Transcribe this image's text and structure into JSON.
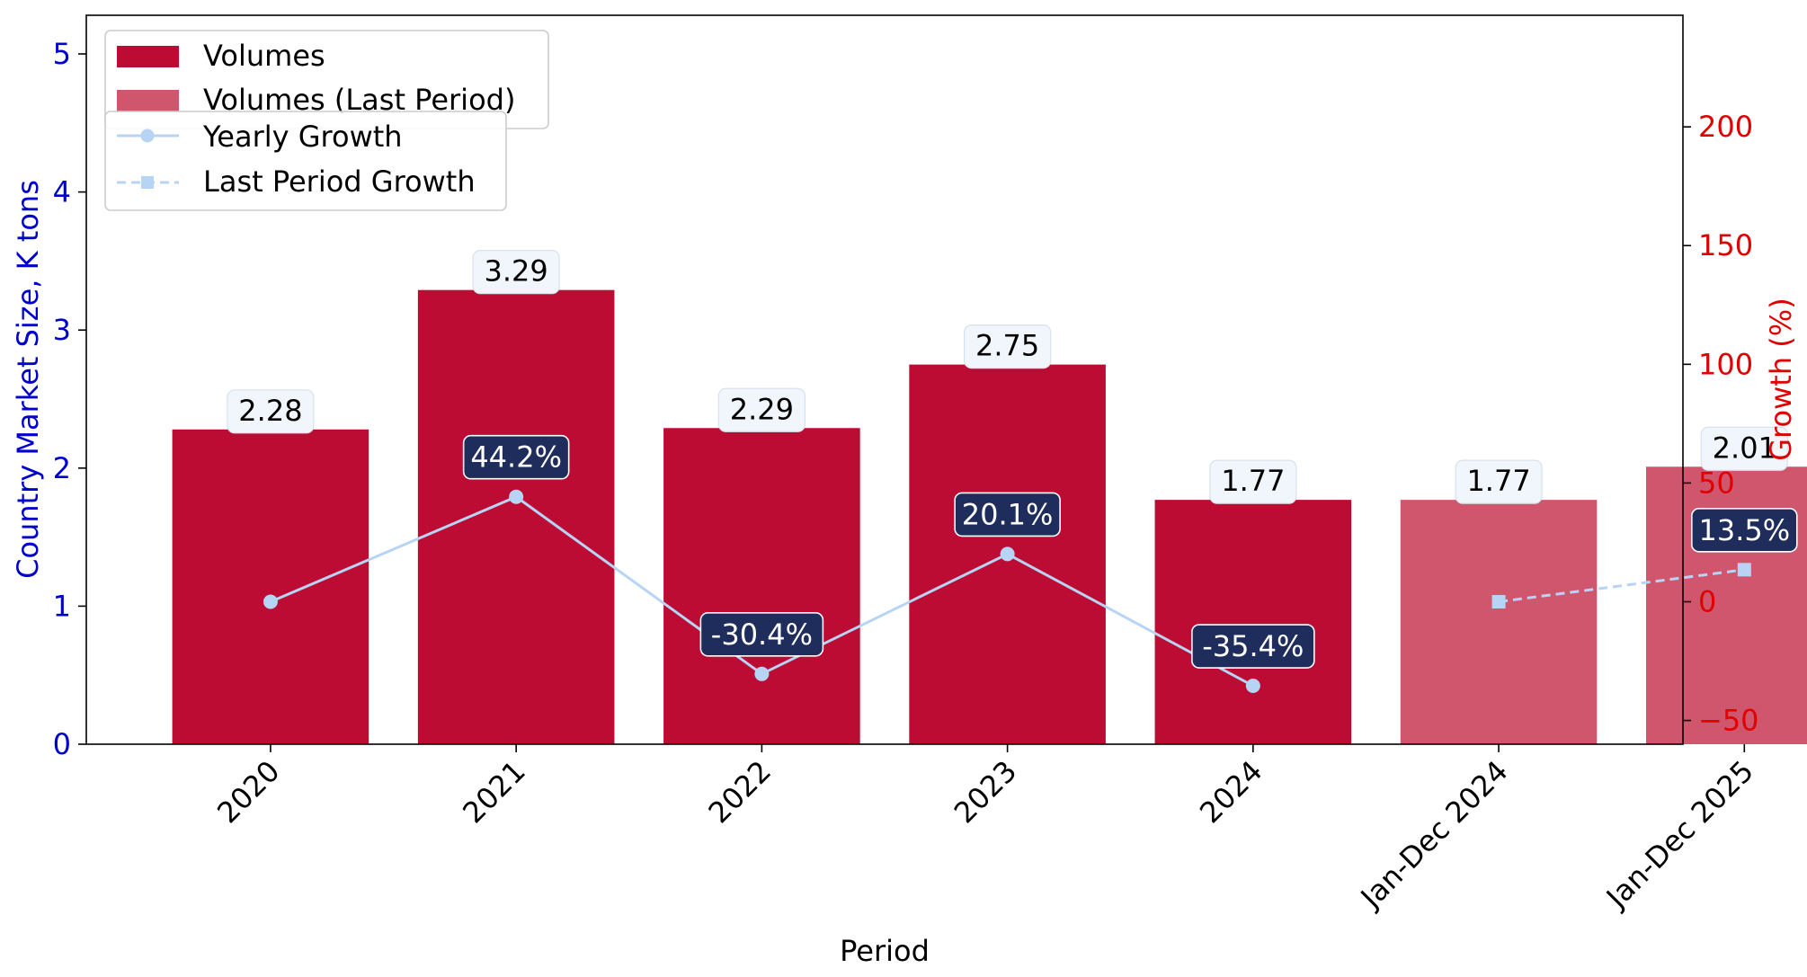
{
  "chart_data": {
    "type": "bar",
    "categories": [
      "2020",
      "2021",
      "2022",
      "2023",
      "2024",
      "Jan-Dec 2024",
      "Jan-Dec 2025"
    ],
    "volumes": {
      "name": "Volumes",
      "categories": [
        "2020",
        "2021",
        "2022",
        "2023",
        "2024"
      ],
      "values": [
        2.28,
        3.29,
        2.29,
        2.75,
        1.77
      ],
      "labels": [
        "2.28",
        "3.29",
        "2.29",
        "2.75",
        "1.77"
      ],
      "color": "#bc0c33"
    },
    "volumes_last_period": {
      "name": "Volumes (Last Period)",
      "categories": [
        "Jan-Dec 2024",
        "Jan-Dec 2025"
      ],
      "values": [
        1.77,
        2.01
      ],
      "labels": [
        "1.77",
        "2.01"
      ],
      "color": "#d0566e"
    },
    "yearly_growth": {
      "name": "Yearly Growth",
      "categories": [
        "2020",
        "2021",
        "2022",
        "2023",
        "2024"
      ],
      "values": [
        0,
        44.2,
        -30.4,
        20.1,
        -35.4
      ],
      "labels": [
        "",
        "44.2%",
        "-30.4%",
        "20.1%",
        "-35.4%"
      ],
      "color": "#b8d4f5",
      "line_style": "solid",
      "marker": "circle"
    },
    "last_period_growth": {
      "name": "Last Period Growth",
      "categories": [
        "Jan-Dec 2024",
        "Jan-Dec 2025"
      ],
      "values": [
        0,
        13.5
      ],
      "labels": [
        "",
        "13.5%"
      ],
      "color": "#b8d4f5",
      "line_style": "dashed",
      "marker": "square"
    },
    "xlabel": "Period",
    "ylabel_left": "Country Market Size, K tons",
    "ylabel_right": "Growth (%)",
    "ylim_left": [
      0,
      5.28
    ],
    "ylim_right": [
      -60,
      247
    ],
    "yticks_left": [
      "0",
      "1",
      "2",
      "3",
      "4",
      "5"
    ],
    "yticks_right": [
      "−50",
      "0",
      "50",
      "100",
      "150",
      "200"
    ],
    "left_axis_color": "#0000cc",
    "right_axis_color": "#e00000",
    "growth_label_bg": "#1f2d5c",
    "value_label_bg": "#f0f6fb",
    "grid": false,
    "legend_placement": "upper-left"
  }
}
